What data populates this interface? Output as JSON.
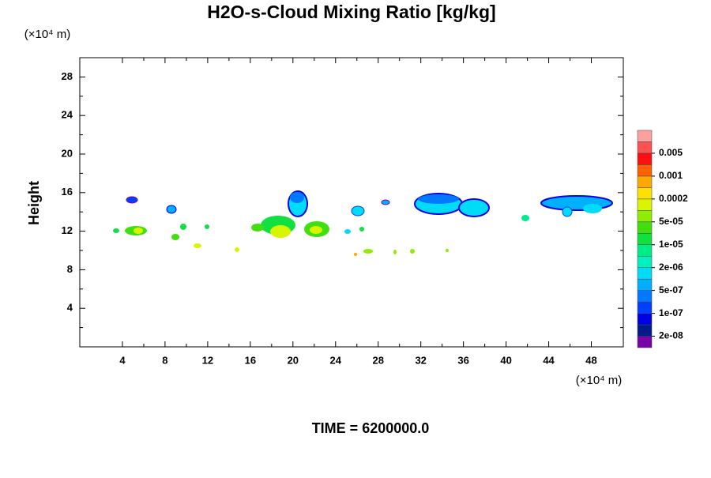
{
  "chart_data": {
    "type": "contour",
    "title": "H2O-s-Cloud Mixing Ratio [kg/kg]",
    "ylabel": "Height",
    "x_unit": "(×10⁴ m)",
    "y_unit": "(×10⁴ m)",
    "xlim": [
      0,
      51
    ],
    "xticks": [
      4,
      8,
      12,
      16,
      20,
      24,
      28,
      32,
      36,
      40,
      44,
      48
    ],
    "ylim": [
      0,
      30
    ],
    "yticks": [
      4,
      8,
      12,
      16,
      20,
      24,
      28
    ],
    "colorbar": {
      "colors": [
        "#7a00a8",
        "#001c8c",
        "#0000e6",
        "#0040ff",
        "#0078ff",
        "#00b0ff",
        "#00dcf8",
        "#00f0c0",
        "#00ec88",
        "#10e040",
        "#40e010",
        "#90ec00",
        "#d8f400",
        "#ffe000",
        "#ffa800",
        "#ff6000",
        "#ff1010",
        "#ff5050",
        "#ffa0a0"
      ],
      "ticks": [
        {
          "value": 2e-08,
          "label": "2e-08"
        },
        {
          "value": 1e-07,
          "label": "1e-07"
        },
        {
          "value": 5e-07,
          "label": "5e-07"
        },
        {
          "value": 2e-06,
          "label": "2e-06"
        },
        {
          "value": 1e-05,
          "label": "1e-05"
        },
        {
          "value": 5e-05,
          "label": "5e-05"
        },
        0.0002,
        0.001,
        0.005
      ]
    },
    "time_label": "TIME = 6200000.0"
  }
}
